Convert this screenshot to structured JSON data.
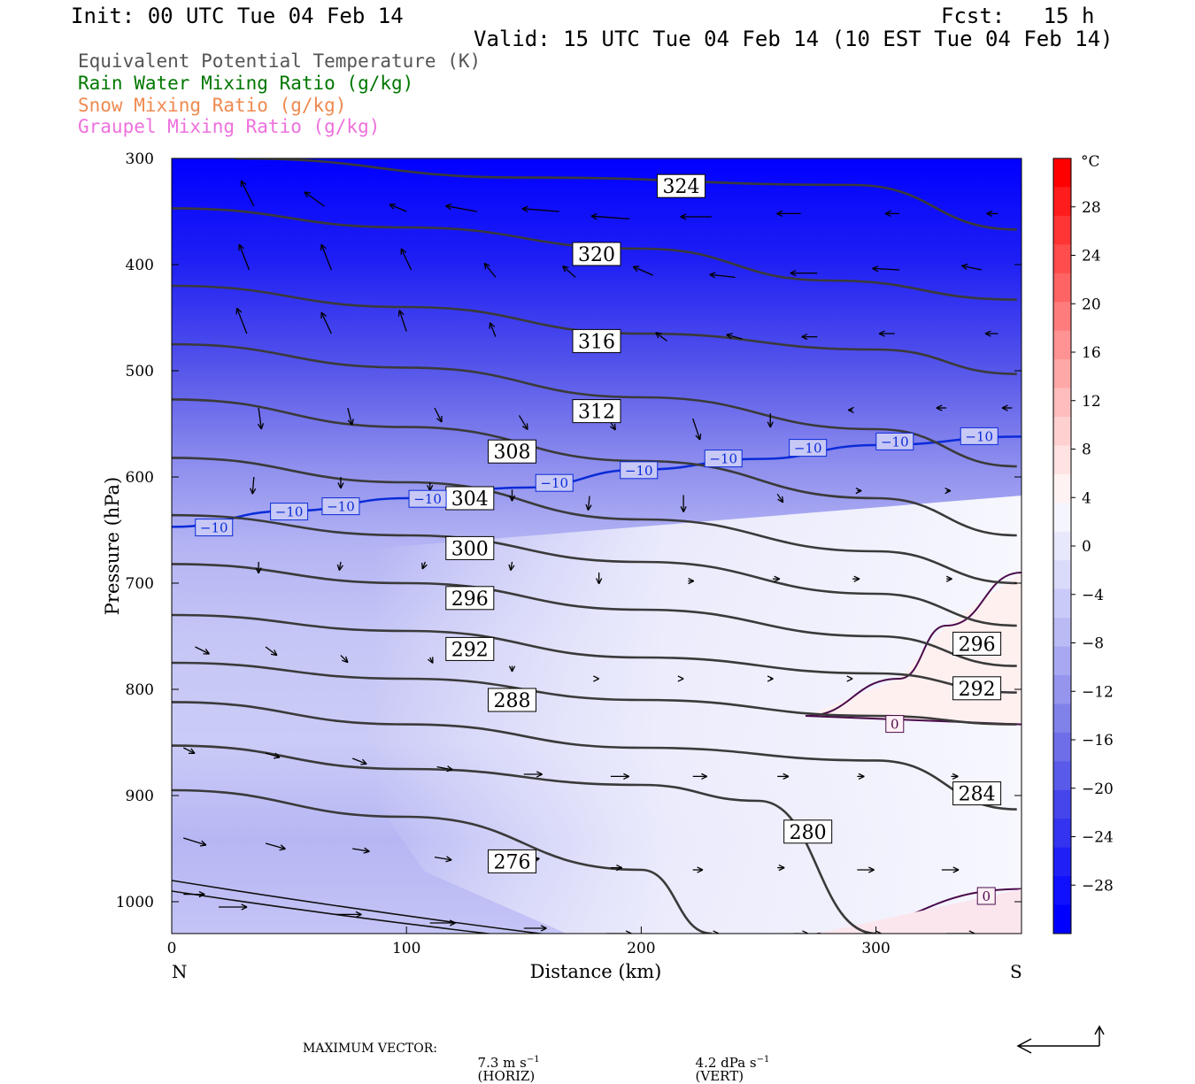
{
  "header": {
    "init": "Init: 00 UTC Tue 04 Feb 14",
    "fcst": "Fcst:   15 h",
    "valid": "Valid: 15 UTC Tue 04 Feb 14 (10 EST Tue 04 Feb 14)"
  },
  "legend": [
    {
      "label": "Equivalent Potential Temperature (K)",
      "color": "#555555"
    },
    {
      "label": "Rain Water Mixing Ratio (g/kg)",
      "color": "#007700"
    },
    {
      "label": "Snow Mixing Ratio (g/kg)",
      "color": "#ef8a50"
    },
    {
      "label": "Graupel Mixing Ratio (g/kg)",
      "color": "#ee70dd"
    }
  ],
  "chart_data": {
    "type": "cross-section contour",
    "xlabel": "Distance (km)",
    "ylabel": "Pressure (hPa)",
    "xlim": [
      0,
      362
    ],
    "ylim": [
      300,
      1030
    ],
    "x_ticks": [
      0,
      100,
      200,
      300
    ],
    "y_ticks": [
      300,
      400,
      500,
      600,
      700,
      800,
      900,
      1000
    ],
    "x_end_labels": {
      "left": "N",
      "right": "S"
    },
    "colorbar": {
      "unit": "°C",
      "tick_labels": [
        "28",
        "24",
        "20",
        "16",
        "12",
        "8",
        "4",
        "0",
        "−4",
        "−8",
        "−12",
        "−16",
        "−20",
        "−24",
        "−28"
      ],
      "colors": [
        "#0000ff",
        "#1010ff",
        "#2020f6",
        "#3333f0",
        "#4545ec",
        "#5a5aea",
        "#6e6ee8",
        "#8181ea",
        "#9595ee",
        "#a8a8f2",
        "#babaf5",
        "#cacaf8",
        "#dadafa",
        "#e8e8fc",
        "#f5f5fe",
        "#fff2f2",
        "#ffe2e2",
        "#ffd0d0",
        "#ffbdbd",
        "#ffa8a8",
        "#ff9292",
        "#ff7c7c",
        "#ff6464",
        "#ff4c4c",
        "#ff3434",
        "#ff1c1c",
        "#ff0000"
      ]
    },
    "theta_e_contours": [
      {
        "label": "324",
        "points": [
          [
            27,
            300
          ],
          [
            150,
            318
          ],
          [
            290,
            325
          ],
          [
            360,
            367
          ]
        ]
      },
      {
        "label": "320",
        "points": [
          [
            0,
            347
          ],
          [
            100,
            365
          ],
          [
            200,
            385
          ],
          [
            280,
            415
          ],
          [
            360,
            433
          ]
        ]
      },
      {
        "label": "316",
        "points": [
          [
            0,
            420
          ],
          [
            100,
            440
          ],
          [
            200,
            465
          ],
          [
            300,
            480
          ],
          [
            360,
            503
          ]
        ]
      },
      {
        "label": "312",
        "points": [
          [
            0,
            475
          ],
          [
            100,
            497
          ],
          [
            200,
            525
          ],
          [
            300,
            555
          ],
          [
            360,
            590
          ]
        ]
      },
      {
        "label": "308",
        "points": [
          [
            0,
            527
          ],
          [
            100,
            553
          ],
          [
            200,
            585
          ],
          [
            300,
            620
          ],
          [
            360,
            655
          ]
        ]
      },
      {
        "label": "304",
        "points": [
          [
            0,
            582
          ],
          [
            100,
            605
          ],
          [
            200,
            640
          ],
          [
            300,
            670
          ],
          [
            360,
            700
          ]
        ]
      },
      {
        "label": "300",
        "points": [
          [
            0,
            636
          ],
          [
            100,
            655
          ],
          [
            200,
            680
          ],
          [
            300,
            710
          ],
          [
            360,
            740
          ]
        ]
      },
      {
        "label": "296",
        "points": [
          [
            0,
            682
          ],
          [
            100,
            700
          ],
          [
            200,
            725
          ],
          [
            300,
            750
          ],
          [
            360,
            778
          ]
        ]
      },
      {
        "label": "292",
        "points": [
          [
            0,
            730
          ],
          [
            100,
            745
          ],
          [
            200,
            770
          ],
          [
            300,
            785
          ],
          [
            360,
            803
          ]
        ]
      },
      {
        "label": "288",
        "points": [
          [
            0,
            775
          ],
          [
            100,
            790
          ],
          [
            200,
            810
          ],
          [
            300,
            825
          ],
          [
            360,
            833
          ]
        ]
      },
      {
        "label": "284",
        "points": [
          [
            0,
            812
          ],
          [
            100,
            833
          ],
          [
            200,
            855
          ],
          [
            300,
            867
          ],
          [
            360,
            913
          ]
        ]
      },
      {
        "label": "280",
        "points": [
          [
            0,
            853
          ],
          [
            100,
            875
          ],
          [
            200,
            890
          ],
          [
            250,
            905
          ],
          [
            300,
            1030
          ]
        ]
      },
      {
        "label": "276",
        "points": [
          [
            0,
            895
          ],
          [
            100,
            920
          ],
          [
            200,
            970
          ],
          [
            230,
            1030
          ]
        ]
      }
    ],
    "isotherm_minus10": {
      "label": "−10",
      "points": [
        [
          0,
          647
        ],
        [
          50,
          632
        ],
        [
          100,
          620
        ],
        [
          150,
          610
        ],
        [
          200,
          593
        ],
        [
          250,
          583
        ],
        [
          300,
          570
        ],
        [
          362,
          562
        ]
      ]
    },
    "isotherm_zero": {
      "label": "0",
      "points": [
        [
          270,
          825
        ],
        [
          310,
          790
        ],
        [
          330,
          740
        ],
        [
          362,
          690
        ]
      ],
      "points_lower": [
        [
          275,
          1030
        ],
        [
          362,
          988
        ]
      ]
    },
    "contour_labels": [
      {
        "text": "324",
        "x": 217,
        "p": 326
      },
      {
        "text": "320",
        "x": 181,
        "p": 390
      },
      {
        "text": "316",
        "x": 181,
        "p": 472
      },
      {
        "text": "312",
        "x": 181,
        "p": 538
      },
      {
        "text": "308",
        "x": 145,
        "p": 576
      },
      {
        "text": "304",
        "x": 127,
        "p": 620
      },
      {
        "text": "300",
        "x": 127,
        "p": 667
      },
      {
        "text": "296",
        "x": 127,
        "p": 714
      },
      {
        "text": "292",
        "x": 127,
        "p": 762
      },
      {
        "text": "288",
        "x": 145,
        "p": 810
      },
      {
        "text": "296",
        "x": 343,
        "p": 757
      },
      {
        "text": "292",
        "x": 343,
        "p": 799
      },
      {
        "text": "284",
        "x": 343,
        "p": 898
      },
      {
        "text": "280",
        "x": 271,
        "p": 934
      },
      {
        "text": "276",
        "x": 145,
        "p": 962
      }
    ],
    "iso_labels": [
      {
        "text": "−10",
        "x": 18,
        "p": 648
      },
      {
        "text": "−10",
        "x": 50,
        "p": 633
      },
      {
        "text": "−10",
        "x": 72,
        "p": 628
      },
      {
        "text": "−10",
        "x": 109,
        "p": 621
      },
      {
        "text": "−10",
        "x": 163,
        "p": 606
      },
      {
        "text": "−10",
        "x": 199,
        "p": 594
      },
      {
        "text": "−10",
        "x": 235,
        "p": 583
      },
      {
        "text": "−10",
        "x": 271,
        "p": 573
      },
      {
        "text": "−10",
        "x": 308,
        "p": 567
      },
      {
        "text": "−10",
        "x": 344,
        "p": 562
      },
      {
        "text": "0",
        "x": 308,
        "p": 833
      },
      {
        "text": "0",
        "x": 347,
        "p": 995
      }
    ],
    "vectors": [
      {
        "x": 35,
        "p": 345,
        "u": -9,
        "w": -18
      },
      {
        "x": 65,
        "p": 345,
        "u": -14,
        "w": -10
      },
      {
        "x": 100,
        "p": 350,
        "u": -12,
        "w": -5
      },
      {
        "x": 130,
        "p": 350,
        "u": -22,
        "w": -4
      },
      {
        "x": 165,
        "p": 350,
        "u": -26,
        "w": -2
      },
      {
        "x": 195,
        "p": 357,
        "u": -27,
        "w": -2
      },
      {
        "x": 230,
        "p": 355,
        "u": -22,
        "w": 0
      },
      {
        "x": 268,
        "p": 352,
        "u": -17,
        "w": 0
      },
      {
        "x": 310,
        "p": 352,
        "u": -10,
        "w": 0
      },
      {
        "x": 352,
        "p": 352,
        "u": -8,
        "w": 0
      },
      {
        "x": 33,
        "p": 405,
        "u": -7,
        "w": -18
      },
      {
        "x": 68,
        "p": 405,
        "u": -7,
        "w": -18
      },
      {
        "x": 102,
        "p": 405,
        "u": -7,
        "w": -15
      },
      {
        "x": 138,
        "p": 412,
        "u": -8,
        "w": -10
      },
      {
        "x": 172,
        "p": 412,
        "u": -9,
        "w": -8
      },
      {
        "x": 205,
        "p": 410,
        "u": -14,
        "w": -6
      },
      {
        "x": 240,
        "p": 412,
        "u": -18,
        "w": -2
      },
      {
        "x": 275,
        "p": 408,
        "u": -19,
        "w": 0
      },
      {
        "x": 310,
        "p": 405,
        "u": -19,
        "w": -1
      },
      {
        "x": 345,
        "p": 405,
        "u": -14,
        "w": -3
      },
      {
        "x": 32,
        "p": 465,
        "u": -7,
        "w": -18
      },
      {
        "x": 68,
        "p": 465,
        "u": -7,
        "w": -15
      },
      {
        "x": 100,
        "p": 463,
        "u": -5,
        "w": -15
      },
      {
        "x": 138,
        "p": 468,
        "u": -4,
        "w": -10
      },
      {
        "x": 177,
        "p": 478,
        "u": -4,
        "w": -8
      },
      {
        "x": 211,
        "p": 472,
        "u": -8,
        "w": -6
      },
      {
        "x": 243,
        "p": 470,
        "u": -11,
        "w": -3
      },
      {
        "x": 275,
        "p": 468,
        "u": -11,
        "w": 0
      },
      {
        "x": 308,
        "p": 465,
        "u": -11,
        "w": 0
      },
      {
        "x": 352,
        "p": 465,
        "u": -9,
        "w": 0
      },
      {
        "x": 37,
        "p": 535,
        "u": 2,
        "w": 15
      },
      {
        "x": 75,
        "p": 535,
        "u": 3,
        "w": 12
      },
      {
        "x": 112,
        "p": 535,
        "u": 5,
        "w": 10
      },
      {
        "x": 148,
        "p": 542,
        "u": 6,
        "w": 10
      },
      {
        "x": 186,
        "p": 545,
        "u": 5,
        "w": 8
      },
      {
        "x": 222,
        "p": 545,
        "u": 5,
        "w": 15
      },
      {
        "x": 255,
        "p": 540,
        "u": 0,
        "w": 10
      },
      {
        "x": 290,
        "p": 537,
        "u": -3,
        "w": 0
      },
      {
        "x": 330,
        "p": 535,
        "u": -7,
        "w": 0
      },
      {
        "x": 358,
        "p": 535,
        "u": -7,
        "w": 0
      },
      {
        "x": 35,
        "p": 600,
        "u": -1,
        "w": 12
      },
      {
        "x": 72,
        "p": 600,
        "u": 0,
        "w": 8
      },
      {
        "x": 110,
        "p": 605,
        "u": 0,
        "w": 6
      },
      {
        "x": 145,
        "p": 612,
        "u": 0,
        "w": 8
      },
      {
        "x": 178,
        "p": 618,
        "u": -1,
        "w": 10
      },
      {
        "x": 218,
        "p": 617,
        "u": 0,
        "w": 12
      },
      {
        "x": 258,
        "p": 616,
        "u": 4,
        "w": 6
      },
      {
        "x": 292,
        "p": 613,
        "u": 3,
        "w": 0
      },
      {
        "x": 330,
        "p": 613,
        "u": 3,
        "w": 0
      },
      {
        "x": 37,
        "p": 680,
        "u": 0,
        "w": 8
      },
      {
        "x": 72,
        "p": 680,
        "u": -1,
        "w": 6
      },
      {
        "x": 108,
        "p": 680,
        "u": -2,
        "w": 5
      },
      {
        "x": 145,
        "p": 680,
        "u": -1,
        "w": 6
      },
      {
        "x": 182,
        "p": 690,
        "u": 0,
        "w": 8
      },
      {
        "x": 220,
        "p": 698,
        "u": 4,
        "w": 0
      },
      {
        "x": 256,
        "p": 696,
        "u": 5,
        "w": 0
      },
      {
        "x": 290,
        "p": 696,
        "u": 5,
        "w": 0
      },
      {
        "x": 330,
        "p": 696,
        "u": 4,
        "w": 0
      },
      {
        "x": 10,
        "p": 760,
        "u": 10,
        "w": 5
      },
      {
        "x": 40,
        "p": 760,
        "u": 8,
        "w": 6
      },
      {
        "x": 72,
        "p": 768,
        "u": 5,
        "w": 5
      },
      {
        "x": 110,
        "p": 770,
        "u": 2,
        "w": 4
      },
      {
        "x": 145,
        "p": 778,
        "u": 0,
        "w": 4
      },
      {
        "x": 182,
        "p": 790,
        "u": 0,
        "w": 0
      },
      {
        "x": 218,
        "p": 790,
        "u": 0,
        "w": 0
      },
      {
        "x": 255,
        "p": 790,
        "u": 2,
        "w": 0
      },
      {
        "x": 290,
        "p": 790,
        "u": 0,
        "w": 0
      },
      {
        "x": 5,
        "p": 855,
        "u": 8,
        "w": 4
      },
      {
        "x": 40,
        "p": 860,
        "u": 10,
        "w": 3
      },
      {
        "x": 77,
        "p": 865,
        "u": 10,
        "w": 4
      },
      {
        "x": 113,
        "p": 873,
        "u": 11,
        "w": 2
      },
      {
        "x": 150,
        "p": 880,
        "u": 13,
        "w": 0
      },
      {
        "x": 187,
        "p": 882,
        "u": 13,
        "w": 0
      },
      {
        "x": 222,
        "p": 882,
        "u": 10,
        "w": 0
      },
      {
        "x": 258,
        "p": 882,
        "u": 8,
        "w": 0
      },
      {
        "x": 292,
        "p": 882,
        "u": 5,
        "w": 0
      },
      {
        "x": 332,
        "p": 882,
        "u": 5,
        "w": 0
      },
      {
        "x": 5,
        "p": 940,
        "u": 16,
        "w": 5
      },
      {
        "x": 40,
        "p": 945,
        "u": 14,
        "w": 4
      },
      {
        "x": 77,
        "p": 950,
        "u": 12,
        "w": 2
      },
      {
        "x": 112,
        "p": 958,
        "u": 12,
        "w": 2
      },
      {
        "x": 150,
        "p": 962,
        "u": 11,
        "w": -2
      },
      {
        "x": 187,
        "p": 968,
        "u": 8,
        "w": 0
      },
      {
        "x": 222,
        "p": 970,
        "u": 7,
        "w": 0
      },
      {
        "x": 258,
        "p": 968,
        "u": 5,
        "w": 0
      },
      {
        "x": 292,
        "p": 970,
        "u": 12,
        "w": 0
      },
      {
        "x": 328,
        "p": 970,
        "u": 12,
        "w": 0
      },
      {
        "x": 5,
        "p": 993,
        "u": 15,
        "w": 0
      },
      {
        "x": 20,
        "p": 1005,
        "u": 20,
        "w": 0
      },
      {
        "x": 70,
        "p": 1012,
        "u": 18,
        "w": 0
      },
      {
        "x": 110,
        "p": 1020,
        "u": 18,
        "w": 0
      },
      {
        "x": 150,
        "p": 1025,
        "u": 16,
        "w": 0
      },
      {
        "x": 185,
        "p": 1030,
        "u": 18,
        "w": 0
      },
      {
        "x": 230,
        "p": 1030,
        "u": 5,
        "w": 0
      },
      {
        "x": 265,
        "p": 1030,
        "u": 10,
        "w": 0
      },
      {
        "x": 295,
        "p": 1030,
        "u": 12,
        "w": 0
      },
      {
        "x": 330,
        "p": 1030,
        "u": 20,
        "w": 0
      }
    ]
  },
  "footer": {
    "max_vector_label": "MAXIMUM VECTOR:",
    "horiz_value": "7.3 m s",
    "horiz_exp": "−1",
    "horiz_tag": "(HORIZ)",
    "vert_value": "4.2 dPa s",
    "vert_exp": "−1",
    "vert_tag": "(VERT)"
  }
}
